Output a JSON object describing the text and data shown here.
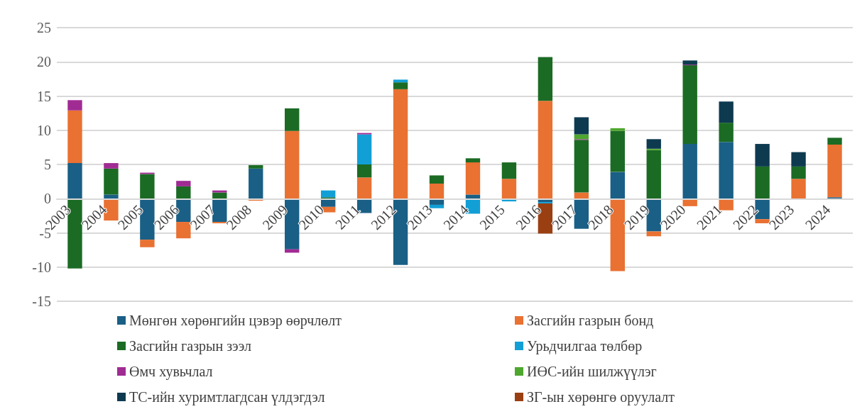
{
  "chart_data": {
    "type": "bar",
    "stacked": true,
    "categories": [
      "2003",
      "2004",
      "2005",
      "2006",
      "2007",
      "2008",
      "2009",
      "2010",
      "2011",
      "2012",
      "2013",
      "2014",
      "2015",
      "2016",
      "2017",
      "2018",
      "2019",
      "2020",
      "2021",
      "2022",
      "2023",
      "2024"
    ],
    "series": [
      {
        "name": "Мөнгөн хөрөнгийн цэвэр өөрчлөлт",
        "color": "#1a5f85",
        "values": [
          5.2,
          0.6,
          -6.0,
          -3.4,
          -3.4,
          4.4,
          -7.4,
          -1.2,
          -2.1,
          -9.7,
          -0.9,
          0.6,
          null,
          -0.5,
          -4.4,
          3.9,
          -4.8,
          8.0,
          8.3,
          -3.0,
          null,
          0.2
        ]
      },
      {
        "name": "Засгийн газрын бонд",
        "color": "#e97132",
        "values": [
          7.7,
          -3.2,
          -1.1,
          -2.4,
          -0.2,
          -0.3,
          9.9,
          -0.8,
          3.1,
          16.0,
          2.2,
          4.7,
          2.9,
          14.3,
          0.9,
          -10.6,
          -0.7,
          -1.1,
          -1.7,
          -0.6,
          2.9,
          7.7
        ]
      },
      {
        "name": "Засгийн газрын зээл",
        "color": "#1b6b24",
        "values": [
          -10.2,
          3.8,
          3.6,
          1.8,
          0.9,
          0.5,
          3.3,
          0.2,
          1.9,
          1.0,
          1.2,
          0.6,
          2.4,
          6.4,
          7.7,
          6.0,
          7.1,
          11.5,
          2.8,
          4.7,
          1.8,
          1.0
        ]
      },
      {
        "name": "Урьдчилгаа төлбөр",
        "color": "#129fd6",
        "values": [
          null,
          null,
          null,
          null,
          null,
          null,
          null,
          1.0,
          4.4,
          0.4,
          -0.5,
          -2.2,
          -0.4,
          -0.2,
          null,
          null,
          null,
          null,
          null,
          null,
          null,
          null
        ]
      },
      {
        "name": "Өмч хувьчлал",
        "color": "#a02b93",
        "values": [
          1.5,
          0.8,
          0.2,
          0.8,
          0.3,
          null,
          -0.5,
          null,
          0.2,
          null,
          null,
          null,
          null,
          null,
          0.1,
          null,
          null,
          0.1,
          null,
          null,
          null,
          null
        ]
      },
      {
        "name": "ИӨС-ийн шилжүүлэг",
        "color": "#4ea72e",
        "values": [
          null,
          null,
          null,
          null,
          null,
          null,
          null,
          null,
          null,
          null,
          null,
          null,
          null,
          null,
          0.7,
          0.4,
          0.2,
          null,
          null,
          null,
          null,
          null
        ]
      },
      {
        "name": "ТС-ийн хуримтлагдсан үлдэгдэл",
        "color": "#0e3a50",
        "values": [
          null,
          null,
          null,
          null,
          null,
          null,
          null,
          null,
          null,
          null,
          null,
          null,
          null,
          null,
          2.5,
          null,
          1.4,
          0.6,
          3.1,
          3.3,
          2.1,
          null
        ]
      },
      {
        "name": "ЗГ-ын хөрөнгө оруулалт",
        "color": "#9a3f12",
        "values": [
          null,
          null,
          null,
          null,
          null,
          null,
          null,
          null,
          null,
          null,
          null,
          null,
          null,
          -4.4,
          null,
          null,
          null,
          null,
          null,
          null,
          null,
          null
        ]
      }
    ],
    "ylim": [
      -15,
      25
    ],
    "yticks": [
      -15,
      -10,
      -5,
      0,
      5,
      10,
      15,
      20,
      25
    ],
    "grid": "y",
    "legend": "bottom"
  }
}
